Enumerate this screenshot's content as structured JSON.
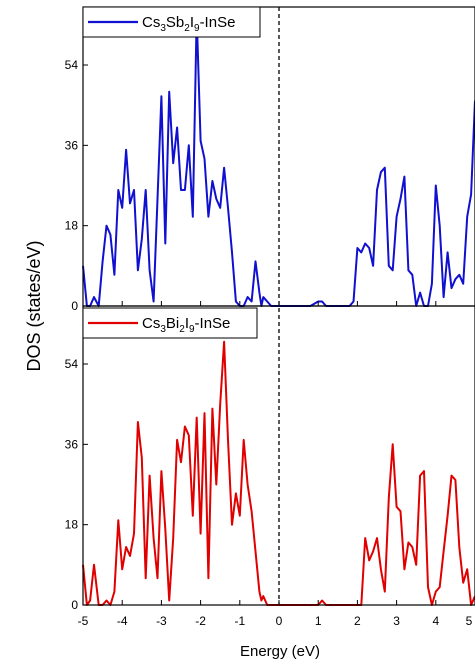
{
  "chart_data": {
    "type": "line",
    "xlabel": "Energy (eV)",
    "ylabel": "DOS (states/eV)",
    "xlim": [
      -5,
      5
    ],
    "xticks": [
      "-5",
      "-4",
      "-3",
      "-2",
      "-1",
      "0",
      "1",
      "2",
      "3",
      "4",
      "5"
    ],
    "fermi_level": 0,
    "grid": false,
    "legend_placement": "top-left",
    "panels": [
      {
        "name": "top",
        "ylim": [
          0,
          67
        ],
        "yticks": [
          "0",
          "18",
          "36",
          "54"
        ],
        "series": {
          "legend_parts": [
            "Cs",
            "3",
            "Sb",
            "2",
            "I",
            "9",
            "-InSe"
          ],
          "color": "#1010d0",
          "x": [
            -5,
            -4.9,
            -4.82,
            -4.72,
            -4.6,
            -4.5,
            -4.4,
            -4.3,
            -4.2,
            -4.1,
            -4.0,
            -3.9,
            -3.8,
            -3.7,
            -3.6,
            -3.5,
            -3.4,
            -3.3,
            -3.2,
            -3.1,
            -3.0,
            -2.9,
            -2.8,
            -2.7,
            -2.6,
            -2.5,
            -2.4,
            -2.3,
            -2.2,
            -2.1,
            -2.0,
            -1.9,
            -1.8,
            -1.7,
            -1.6,
            -1.5,
            -1.4,
            -1.3,
            -1.2,
            -1.1,
            -1.0,
            -0.9,
            -0.8,
            -0.7,
            -0.6,
            -0.5,
            -0.45,
            -0.4,
            -0.3,
            -0.2,
            -0.1,
            0.0,
            0.2,
            0.4,
            0.6,
            0.8,
            1.0,
            1.1,
            1.2,
            1.4,
            1.6,
            1.7,
            1.8,
            1.9,
            2.0,
            2.1,
            2.2,
            2.3,
            2.4,
            2.5,
            2.6,
            2.7,
            2.8,
            2.9,
            3.0,
            3.1,
            3.2,
            3.3,
            3.4,
            3.5,
            3.6,
            3.7,
            3.8,
            3.9,
            4.0,
            4.1,
            4.2,
            4.3,
            4.4,
            4.5,
            4.6,
            4.7,
            4.8,
            4.9,
            5.0
          ],
          "y": [
            9,
            0,
            0,
            2,
            0,
            10,
            18,
            16,
            7,
            26,
            22,
            35,
            23,
            26,
            8,
            15,
            26,
            8,
            1,
            24,
            47,
            14,
            48,
            32,
            40,
            26,
            26,
            36,
            20,
            65,
            37,
            33,
            20,
            28,
            24,
            22,
            31,
            22,
            12,
            1,
            0,
            0,
            2,
            1,
            10,
            3,
            0,
            2,
            1,
            0,
            0,
            0,
            0,
            0,
            0,
            0,
            1,
            1,
            0,
            0,
            0,
            0,
            0,
            1,
            13,
            12,
            14,
            13,
            9,
            26,
            30,
            31,
            9,
            8,
            20,
            24,
            29,
            8,
            7,
            0,
            3,
            0,
            0,
            5,
            27,
            18,
            2,
            12,
            4,
            6,
            7,
            5,
            20,
            25,
            46
          ]
        }
      },
      {
        "name": "bottom",
        "ylim": [
          0,
          67
        ],
        "yticks": [
          "0",
          "18",
          "36",
          "54"
        ],
        "series": {
          "legend_parts": [
            "Cs",
            "3",
            "Bi",
            "2",
            "I",
            "9",
            "-InSe"
          ],
          "color": "#e00000",
          "x": [
            -5,
            -4.9,
            -4.82,
            -4.72,
            -4.6,
            -4.5,
            -4.4,
            -4.3,
            -4.2,
            -4.1,
            -4.0,
            -3.9,
            -3.8,
            -3.7,
            -3.6,
            -3.5,
            -3.4,
            -3.3,
            -3.2,
            -3.1,
            -3.0,
            -2.9,
            -2.8,
            -2.7,
            -2.6,
            -2.5,
            -2.4,
            -2.3,
            -2.2,
            -2.1,
            -2.0,
            -1.9,
            -1.8,
            -1.7,
            -1.6,
            -1.5,
            -1.4,
            -1.3,
            -1.2,
            -1.1,
            -1.0,
            -0.9,
            -0.8,
            -0.7,
            -0.6,
            -0.5,
            -0.45,
            -0.4,
            -0.3,
            -0.2,
            -0.1,
            0.0,
            0.2,
            0.4,
            0.6,
            0.8,
            1.0,
            1.1,
            1.2,
            1.4,
            1.6,
            1.7,
            1.8,
            1.9,
            2.0,
            2.1,
            2.2,
            2.3,
            2.4,
            2.5,
            2.6,
            2.7,
            2.8,
            2.9,
            3.0,
            3.1,
            3.2,
            3.3,
            3.4,
            3.5,
            3.6,
            3.7,
            3.8,
            3.9,
            4.0,
            4.1,
            4.2,
            4.3,
            4.4,
            4.5,
            4.6,
            4.7,
            4.8,
            4.9,
            5.0
          ],
          "y": [
            9,
            0,
            1,
            9,
            0,
            0,
            1,
            0,
            3,
            19,
            8,
            13,
            11,
            16,
            41,
            33,
            6,
            29,
            15,
            6,
            30,
            17,
            1,
            15,
            37,
            32,
            40,
            38,
            20,
            42,
            16,
            43,
            6,
            44,
            27,
            45,
            59,
            37,
            18,
            25,
            20,
            37,
            27,
            21,
            12,
            3,
            1,
            2,
            0,
            0,
            0,
            0,
            0,
            0,
            0,
            0,
            0,
            1,
            0,
            0,
            0,
            0,
            0,
            0,
            0,
            0,
            15,
            10,
            12,
            15,
            8,
            3,
            24,
            36,
            22,
            21,
            8,
            14,
            13,
            9,
            29,
            30,
            4,
            0,
            3,
            4,
            12,
            20,
            29,
            28,
            13,
            5,
            8,
            0,
            2
          ]
        }
      }
    ]
  }
}
